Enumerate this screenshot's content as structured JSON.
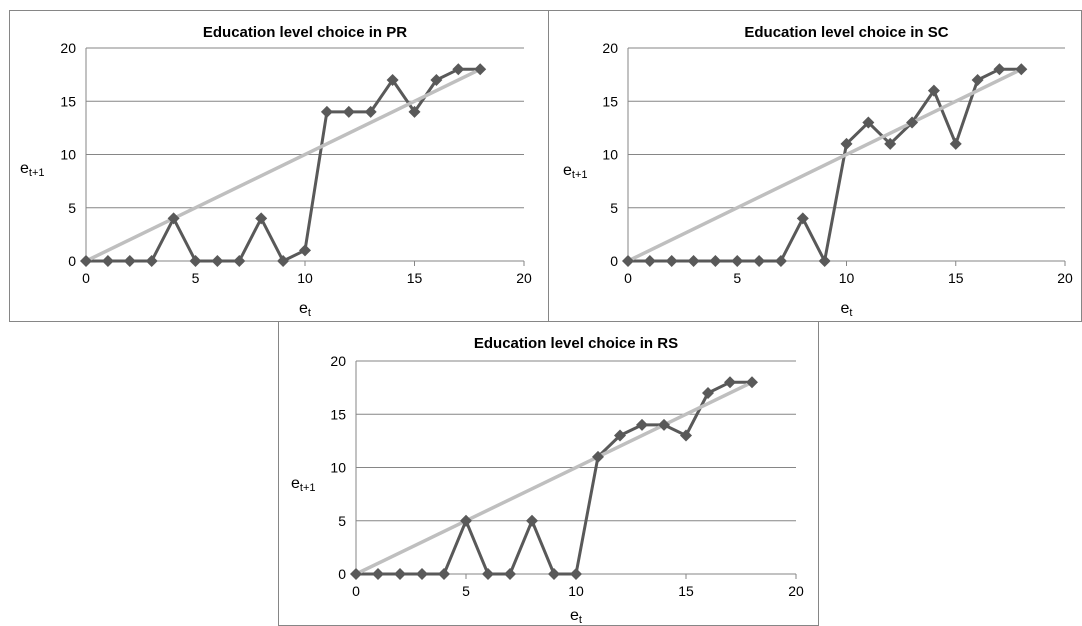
{
  "chart_data": [
    {
      "type": "line",
      "title": "Education level choice in PR",
      "xlabel": "et",
      "ylabel": "et+1",
      "xlim": [
        0,
        20
      ],
      "ylim": [
        0,
        20
      ],
      "xticks": [
        0,
        5,
        10,
        15,
        20
      ],
      "yticks": [
        0,
        5,
        10,
        15,
        20
      ],
      "grid": "horizontal",
      "legend": "none",
      "series": [
        {
          "color": "#595959",
          "marker": "diamond",
          "x": [
            0,
            1,
            2,
            3,
            4,
            5,
            6,
            7,
            8,
            9,
            10,
            11,
            12,
            13,
            14,
            15,
            16,
            17,
            18
          ],
          "y": [
            0,
            0,
            0,
            0,
            4,
            0,
            0,
            0,
            4,
            0,
            1,
            14,
            14,
            14,
            17,
            14,
            17,
            18,
            18
          ]
        },
        {
          "color": "#bfbfbf",
          "marker": "none",
          "x": [
            0,
            18
          ],
          "y": [
            0,
            18
          ]
        }
      ]
    },
    {
      "type": "line",
      "title": "Education level choice in SC",
      "xlabel": "et",
      "ylabel": "et+1",
      "xlim": [
        0,
        20
      ],
      "ylim": [
        0,
        20
      ],
      "xticks": [
        0,
        5,
        10,
        15,
        20
      ],
      "yticks": [
        0,
        5,
        10,
        15,
        20
      ],
      "grid": "horizontal",
      "legend": "none",
      "series": [
        {
          "color": "#595959",
          "marker": "diamond",
          "x": [
            0,
            1,
            2,
            3,
            4,
            5,
            6,
            7,
            8,
            9,
            10,
            11,
            12,
            13,
            14,
            15,
            16,
            17,
            18
          ],
          "y": [
            0,
            0,
            0,
            0,
            0,
            0,
            0,
            0,
            4,
            0,
            11,
            13,
            11,
            13,
            16,
            11,
            17,
            18,
            18
          ]
        },
        {
          "color": "#bfbfbf",
          "marker": "none",
          "x": [
            0,
            18
          ],
          "y": [
            0,
            18
          ]
        }
      ]
    },
    {
      "type": "line",
      "title": "Education level choice in RS",
      "xlabel": "et",
      "ylabel": "et+1",
      "xlim": [
        0,
        20
      ],
      "ylim": [
        0,
        20
      ],
      "xticks": [
        0,
        5,
        10,
        15,
        20
      ],
      "yticks": [
        0,
        5,
        10,
        15,
        20
      ],
      "grid": "horizontal",
      "legend": "none",
      "series": [
        {
          "color": "#595959",
          "marker": "diamond",
          "x": [
            0,
            1,
            2,
            3,
            4,
            5,
            6,
            7,
            8,
            9,
            10,
            11,
            12,
            13,
            14,
            15,
            16,
            17,
            18
          ],
          "y": [
            0,
            0,
            0,
            0,
            0,
            5,
            0,
            0,
            5,
            0,
            0,
            11,
            13,
            14,
            14,
            13,
            17,
            18,
            18
          ]
        },
        {
          "color": "#bfbfbf",
          "marker": "none",
          "x": [
            0,
            18
          ],
          "y": [
            0,
            18
          ]
        }
      ]
    }
  ]
}
